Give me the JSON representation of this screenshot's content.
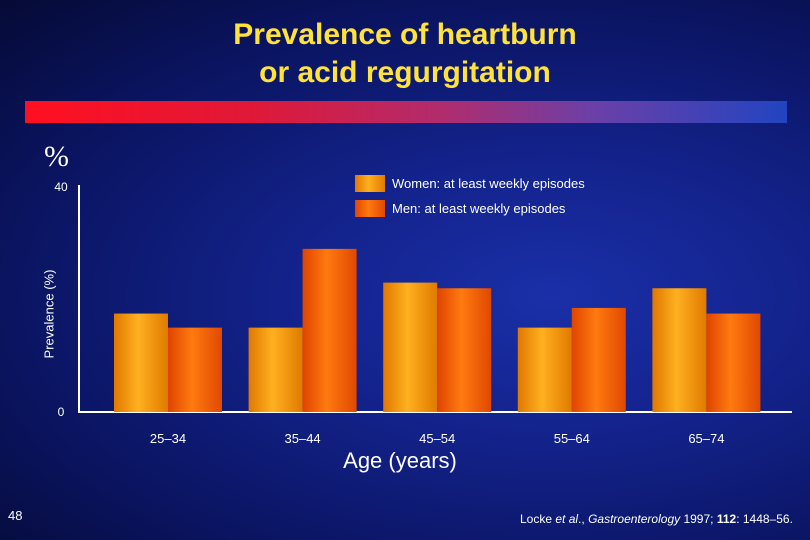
{
  "slide": {
    "title_line1": "Prevalence of heartburn",
    "title_line2": "or acid regurgitation",
    "percent_symbol": "%",
    "slide_number": "48",
    "citation": {
      "authors": "Locke ",
      "et_al": "et al",
      "after_et_al": "., ",
      "journal": "Gastroenterology",
      "year": " 1997; ",
      "volume": "112",
      "pages": ": 1448–56."
    }
  },
  "colors": {
    "title": "#ffe23a",
    "women_bar": "#ff9a00",
    "men_bar": "#ff5a00",
    "rule_start": "#ff1020",
    "rule_end": "#2244c0"
  },
  "chart_data": {
    "type": "bar",
    "title": "Prevalence of heartburn or acid regurgitation",
    "xlabel": "Age (years)",
    "ylabel": "Prevalence (%)",
    "ylim": [
      0,
      40
    ],
    "yticks": [
      "0",
      "40"
    ],
    "grid": false,
    "legend_position": "top-right",
    "categories": [
      "25–34",
      "35–44",
      "45–54",
      "55–64",
      "65–74"
    ],
    "series": [
      {
        "name": "Women: at least weekly episodes",
        "color": "#ff9a00",
        "values": [
          17.5,
          15,
          23,
          15,
          22
        ]
      },
      {
        "name": "Men: at least weekly episodes",
        "color": "#ff5a00",
        "values": [
          15,
          29,
          22,
          18.5,
          17.5
        ]
      }
    ]
  }
}
